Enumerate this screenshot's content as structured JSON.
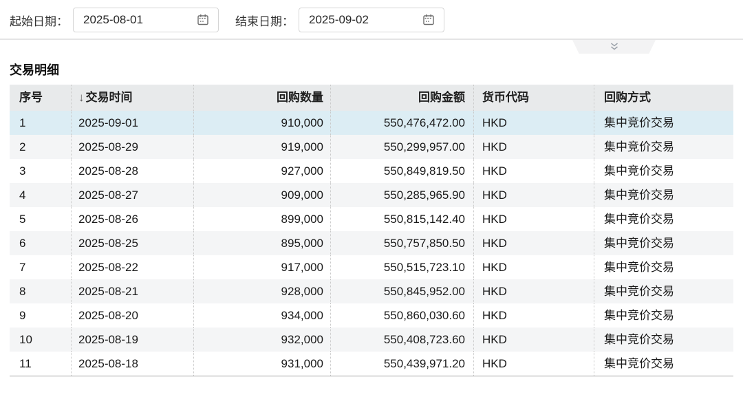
{
  "filters": {
    "start_label": "起始日期：",
    "start_value": "2025-08-01",
    "end_label": "结束日期：",
    "end_value": "2025-09-02"
  },
  "section": {
    "title": "交易明细"
  },
  "table": {
    "sort_icon": "↓",
    "columns": [
      {
        "label": "序号",
        "align": "left"
      },
      {
        "label": "交易时间",
        "align": "left",
        "sorted": "desc"
      },
      {
        "label": "回购数量",
        "align": "right"
      },
      {
        "label": "回购金额",
        "align": "right"
      },
      {
        "label": "货币代码",
        "align": "left"
      },
      {
        "label": "回购方式",
        "align": "left"
      }
    ],
    "highlighted_row_index": 1,
    "rows": [
      [
        "1",
        "2025-09-01",
        "910,000",
        "550,476,472.00",
        "HKD",
        "集中竞价交易"
      ],
      [
        "2",
        "2025-08-29",
        "919,000",
        "550,299,957.00",
        "HKD",
        "集中竞价交易"
      ],
      [
        "3",
        "2025-08-28",
        "927,000",
        "550,849,819.50",
        "HKD",
        "集中竞价交易"
      ],
      [
        "4",
        "2025-08-27",
        "909,000",
        "550,285,965.90",
        "HKD",
        "集中竞价交易"
      ],
      [
        "5",
        "2025-08-26",
        "899,000",
        "550,815,142.40",
        "HKD",
        "集中竞价交易"
      ],
      [
        "6",
        "2025-08-25",
        "895,000",
        "550,757,850.50",
        "HKD",
        "集中竞价交易"
      ],
      [
        "7",
        "2025-08-22",
        "917,000",
        "550,515,723.10",
        "HKD",
        "集中竞价交易"
      ],
      [
        "8",
        "2025-08-21",
        "928,000",
        "550,845,952.00",
        "HKD",
        "集中竞价交易"
      ],
      [
        "9",
        "2025-08-20",
        "934,000",
        "550,860,030.60",
        "HKD",
        "集中竞价交易"
      ],
      [
        "10",
        "2025-08-19",
        "932,000",
        "550,408,723.60",
        "HKD",
        "集中竞价交易"
      ],
      [
        "11",
        "2025-08-18",
        "931,000",
        "550,439,971.20",
        "HKD",
        "集中竞价交易"
      ]
    ]
  },
  "colors": {
    "header_bg": "#e8eaeb",
    "highlight_row_bg": "#dcedf4",
    "stripe_row_bg": "#f4f5f6",
    "table_bottom_border": "#9e9e9e",
    "divider": "#e4e4e5",
    "dotted_separator": "#c9c9c9"
  }
}
